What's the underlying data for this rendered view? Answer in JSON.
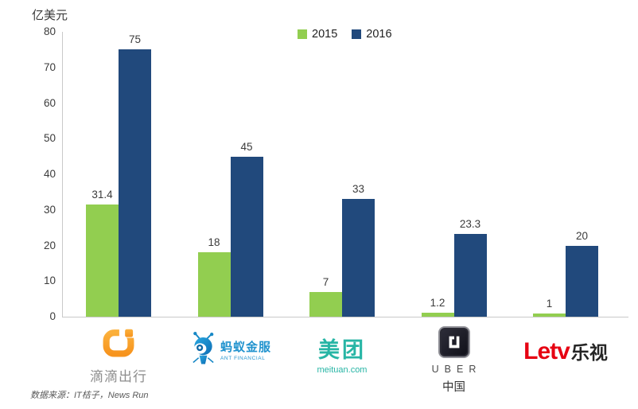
{
  "chart_data": {
    "type": "bar",
    "title": "",
    "ylabel": "亿美元",
    "xlabel": "",
    "ylim": [
      0,
      80
    ],
    "yticks": [
      0,
      10,
      20,
      30,
      40,
      50,
      60,
      70,
      80
    ],
    "grid": false,
    "legend_position": "top-center",
    "categories": [
      "滴滴出行",
      "蚂蚁金服 ANT FINANCIAL",
      "美团 meituan.com",
      "UBER 中国",
      "Letv 乐视"
    ],
    "series": [
      {
        "name": "2015",
        "color": "#92CE50",
        "values": [
          31.4,
          18,
          7,
          1.2,
          1
        ]
      },
      {
        "name": "2016",
        "color": "#21497C",
        "values": [
          75,
          45,
          33,
          23.3,
          20
        ]
      }
    ]
  },
  "colors": {
    "bar_2015": "#92CE50",
    "bar_2016": "#21497C",
    "axis_line": "#C9C9C9",
    "tick_text": "#3B3B3B"
  },
  "logos": {
    "didi": {
      "brand": "滴滴出行",
      "color": "#F7941E"
    },
    "ant": {
      "brand": "蚂蚁金服",
      "sub": "ANT FINANCIAL",
      "color": "#2193CE"
    },
    "meituan": {
      "brand": "美团",
      "sub": "meituan.com",
      "color": "#27B5A5"
    },
    "uber": {
      "brand": "UBER",
      "sub": "中国",
      "color": "#1B1B26"
    },
    "letv": {
      "brand": "Letv",
      "sub": "乐视",
      "color": "#E60012"
    }
  },
  "source_note": "数据来源：IT桔子，News Run"
}
